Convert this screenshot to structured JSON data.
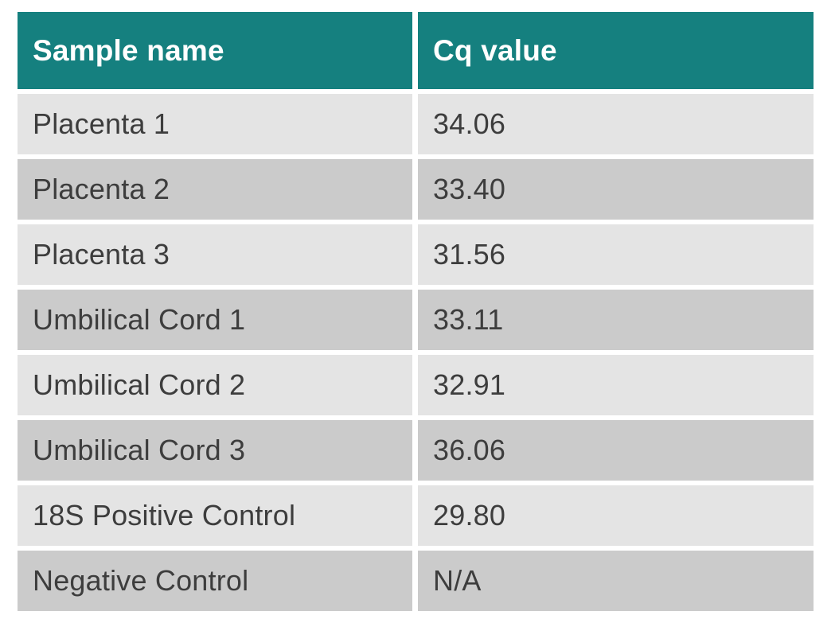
{
  "table": {
    "columns": [
      "Sample name",
      "Cq value"
    ],
    "rows": [
      {
        "sample_name": "Placenta 1",
        "cq_value": "34.06"
      },
      {
        "sample_name": "Placenta 2",
        "cq_value": "33.40"
      },
      {
        "sample_name": "Placenta 3",
        "cq_value": "31.56"
      },
      {
        "sample_name": "Umbilical Cord 1",
        "cq_value": "33.11"
      },
      {
        "sample_name": "Umbilical Cord 2",
        "cq_value": "32.91"
      },
      {
        "sample_name": "Umbilical Cord 3",
        "cq_value": "36.06"
      },
      {
        "sample_name": "18S Positive Control",
        "cq_value": "29.80"
      },
      {
        "sample_name": "Negative Control",
        "cq_value": "N/A"
      }
    ],
    "colors": {
      "header_bg": "#15807f",
      "header_text": "#ffffff",
      "row_light_bg": "#e4e4e4",
      "row_dark_bg": "#cbcbcb",
      "row_text": "#3d3d3d",
      "gap": "#ffffff"
    }
  },
  "chart_data": {
    "type": "table",
    "title": "",
    "columns": [
      "Sample name",
      "Cq value"
    ],
    "rows": [
      [
        "Placenta 1",
        "34.06"
      ],
      [
        "Placenta 2",
        "33.40"
      ],
      [
        "Placenta 3",
        "31.56"
      ],
      [
        "Umbilical Cord 1",
        "33.11"
      ],
      [
        "Umbilical Cord 2",
        "32.91"
      ],
      [
        "Umbilical Cord 3",
        "36.06"
      ],
      [
        "18S Positive Control",
        "29.80"
      ],
      [
        "Negative Control",
        "N/A"
      ]
    ],
    "numeric_cq_values": {
      "Placenta 1": 34.06,
      "Placenta 2": 33.4,
      "Placenta 3": 31.56,
      "Umbilical Cord 1": 33.11,
      "Umbilical Cord 2": 32.91,
      "Umbilical Cord 3": 36.06,
      "18S Positive Control": 29.8,
      "Negative Control": null
    },
    "layout_hints": {
      "header_style": "teal banner, white bold text",
      "row_striping": "alternating light/dark gray starting light",
      "grid": "white gaps between all cells"
    }
  }
}
